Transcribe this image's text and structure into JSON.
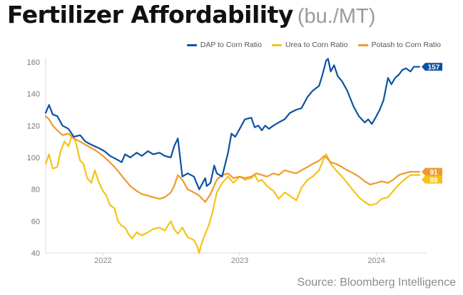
{
  "title": "Fertilizer Affordability",
  "title_unit": "(bu./MT)",
  "source": "Source: Bloomberg Intelligence",
  "chart_data": {
    "type": "line",
    "x_start": "2021-08-01",
    "x_end": "2024-04-25",
    "ylim": [
      40,
      160
    ],
    "yticks": [
      "40",
      "60",
      "80",
      "100",
      "120",
      "140",
      "160"
    ],
    "xticks": [
      {
        "date": "2022-01-01",
        "label": "2022"
      },
      {
        "date": "2023-01-01",
        "label": "2023"
      },
      {
        "date": "2024-01-01",
        "label": "2024"
      }
    ],
    "grid": false,
    "legend_position": "top-right",
    "series": [
      {
        "name": "DAP to Corn Ratio",
        "color": "#0d52a1",
        "end_label": "157",
        "points": [
          [
            "2021-08-01",
            128
          ],
          [
            "2021-08-10",
            133
          ],
          [
            "2021-08-20",
            127
          ],
          [
            "2021-09-01",
            126
          ],
          [
            "2021-09-15",
            120
          ],
          [
            "2021-10-01",
            118
          ],
          [
            "2021-10-15",
            113
          ],
          [
            "2021-11-01",
            114
          ],
          [
            "2021-11-15",
            110
          ],
          [
            "2021-12-01",
            108
          ],
          [
            "2021-12-20",
            106
          ],
          [
            "2022-01-05",
            104
          ],
          [
            "2022-01-20",
            101
          ],
          [
            "2022-02-05",
            99
          ],
          [
            "2022-02-20",
            97
          ],
          [
            "2022-03-01",
            102
          ],
          [
            "2022-03-15",
            100
          ],
          [
            "2022-04-01",
            103
          ],
          [
            "2022-04-15",
            101
          ],
          [
            "2022-05-01",
            104
          ],
          [
            "2022-05-15",
            102
          ],
          [
            "2022-06-01",
            103
          ],
          [
            "2022-06-15",
            101
          ],
          [
            "2022-07-01",
            100
          ],
          [
            "2022-07-10",
            107
          ],
          [
            "2022-07-20",
            112
          ],
          [
            "2022-08-01",
            88
          ],
          [
            "2022-08-15",
            90
          ],
          [
            "2022-09-01",
            88
          ],
          [
            "2022-09-15",
            80
          ],
          [
            "2022-10-01",
            87
          ],
          [
            "2022-10-05",
            82
          ],
          [
            "2022-10-15",
            84
          ],
          [
            "2022-10-25",
            95
          ],
          [
            "2022-11-01",
            90
          ],
          [
            "2022-11-15",
            88
          ],
          [
            "2022-12-01",
            103
          ],
          [
            "2022-12-10",
            115
          ],
          [
            "2022-12-20",
            113
          ],
          [
            "2023-01-01",
            118
          ],
          [
            "2023-01-15",
            124
          ],
          [
            "2023-02-01",
            125
          ],
          [
            "2023-02-10",
            119
          ],
          [
            "2023-02-20",
            120
          ],
          [
            "2023-03-01",
            117
          ],
          [
            "2023-03-10",
            120
          ],
          [
            "2023-03-20",
            118
          ],
          [
            "2023-04-01",
            120
          ],
          [
            "2023-04-15",
            122
          ],
          [
            "2023-05-01",
            124
          ],
          [
            "2023-05-15",
            128
          ],
          [
            "2023-06-01",
            130
          ],
          [
            "2023-06-15",
            131
          ],
          [
            "2023-07-01",
            138
          ],
          [
            "2023-07-15",
            142
          ],
          [
            "2023-08-01",
            145
          ],
          [
            "2023-08-10",
            152
          ],
          [
            "2023-08-20",
            161
          ],
          [
            "2023-08-25",
            162
          ],
          [
            "2023-09-01",
            154
          ],
          [
            "2023-09-10",
            158
          ],
          [
            "2023-09-20",
            151
          ],
          [
            "2023-10-01",
            148
          ],
          [
            "2023-10-15",
            142
          ],
          [
            "2023-11-01",
            132
          ],
          [
            "2023-11-15",
            126
          ],
          [
            "2023-12-01",
            122
          ],
          [
            "2023-12-10",
            124
          ],
          [
            "2023-12-20",
            121
          ],
          [
            "2024-01-01",
            126
          ],
          [
            "2024-01-10",
            130
          ],
          [
            "2024-01-20",
            136
          ],
          [
            "2024-02-01",
            150
          ],
          [
            "2024-02-10",
            146
          ],
          [
            "2024-02-20",
            150
          ],
          [
            "2024-03-01",
            152
          ],
          [
            "2024-03-10",
            155
          ],
          [
            "2024-03-20",
            156
          ],
          [
            "2024-04-01",
            154
          ],
          [
            "2024-04-10",
            157
          ],
          [
            "2024-04-25",
            157
          ]
        ]
      },
      {
        "name": "Urea to Corn Ratio",
        "color": "#f5c316",
        "end_label": "89",
        "points": [
          [
            "2021-08-01",
            96
          ],
          [
            "2021-08-10",
            102
          ],
          [
            "2021-08-20",
            93
          ],
          [
            "2021-09-01",
            94
          ],
          [
            "2021-09-10",
            104
          ],
          [
            "2021-09-20",
            110
          ],
          [
            "2021-10-01",
            107
          ],
          [
            "2021-10-10",
            114
          ],
          [
            "2021-10-20",
            110
          ],
          [
            "2021-11-01",
            98
          ],
          [
            "2021-11-10",
            96
          ],
          [
            "2021-11-20",
            87
          ],
          [
            "2021-12-01",
            84
          ],
          [
            "2021-12-10",
            92
          ],
          [
            "2021-12-20",
            85
          ],
          [
            "2022-01-01",
            79
          ],
          [
            "2022-01-10",
            76
          ],
          [
            "2022-01-20",
            70
          ],
          [
            "2022-02-01",
            68
          ],
          [
            "2022-02-10",
            60
          ],
          [
            "2022-02-20",
            57
          ],
          [
            "2022-03-01",
            56
          ],
          [
            "2022-03-10",
            52
          ],
          [
            "2022-03-20",
            49
          ],
          [
            "2022-04-01",
            53
          ],
          [
            "2022-04-15",
            51
          ],
          [
            "2022-05-01",
            53
          ],
          [
            "2022-05-15",
            55
          ],
          [
            "2022-06-01",
            56
          ],
          [
            "2022-06-15",
            54
          ],
          [
            "2022-07-01",
            60
          ],
          [
            "2022-07-10",
            55
          ],
          [
            "2022-07-20",
            52
          ],
          [
            "2022-08-01",
            56
          ],
          [
            "2022-08-15",
            50
          ],
          [
            "2022-09-01",
            48
          ],
          [
            "2022-09-10",
            44
          ],
          [
            "2022-09-15",
            40
          ],
          [
            "2022-09-20",
            45
          ],
          [
            "2022-10-01",
            52
          ],
          [
            "2022-10-10",
            57
          ],
          [
            "2022-10-20",
            65
          ],
          [
            "2022-11-01",
            78
          ],
          [
            "2022-11-15",
            84
          ],
          [
            "2022-12-01",
            88
          ],
          [
            "2022-12-15",
            84
          ],
          [
            "2023-01-01",
            88
          ],
          [
            "2023-01-15",
            86
          ],
          [
            "2023-02-01",
            87
          ],
          [
            "2023-02-10",
            89
          ],
          [
            "2023-02-20",
            85
          ],
          [
            "2023-03-01",
            86
          ],
          [
            "2023-03-15",
            82
          ],
          [
            "2023-04-01",
            79
          ],
          [
            "2023-04-15",
            74
          ],
          [
            "2023-05-01",
            78
          ],
          [
            "2023-05-15",
            76
          ],
          [
            "2023-06-01",
            73
          ],
          [
            "2023-06-15",
            81
          ],
          [
            "2023-07-01",
            86
          ],
          [
            "2023-07-15",
            88
          ],
          [
            "2023-08-01",
            92
          ],
          [
            "2023-08-15",
            100
          ],
          [
            "2023-08-20",
            102
          ],
          [
            "2023-09-01",
            96
          ],
          [
            "2023-09-15",
            92
          ],
          [
            "2023-10-01",
            88
          ],
          [
            "2023-10-15",
            84
          ],
          [
            "2023-11-01",
            79
          ],
          [
            "2023-11-15",
            75
          ],
          [
            "2023-12-01",
            72
          ],
          [
            "2023-12-15",
            70
          ],
          [
            "2024-01-01",
            71
          ],
          [
            "2024-01-15",
            74
          ],
          [
            "2024-02-01",
            75
          ],
          [
            "2024-02-15",
            79
          ],
          [
            "2024-03-01",
            83
          ],
          [
            "2024-03-15",
            86
          ],
          [
            "2024-04-01",
            89
          ],
          [
            "2024-04-25",
            89
          ]
        ]
      },
      {
        "name": "Potash to Corn Ratio",
        "color": "#ef9a2d",
        "end_label": "91",
        "points": [
          [
            "2021-08-01",
            126
          ],
          [
            "2021-08-10",
            124
          ],
          [
            "2021-08-20",
            120
          ],
          [
            "2021-09-01",
            117
          ],
          [
            "2021-09-15",
            114
          ],
          [
            "2021-10-01",
            115
          ],
          [
            "2021-10-15",
            112
          ],
          [
            "2021-11-01",
            110
          ],
          [
            "2021-11-15",
            108
          ],
          [
            "2021-12-01",
            106
          ],
          [
            "2021-12-15",
            104
          ],
          [
            "2022-01-01",
            101
          ],
          [
            "2022-01-15",
            98
          ],
          [
            "2022-02-01",
            94
          ],
          [
            "2022-02-15",
            90
          ],
          [
            "2022-03-01",
            86
          ],
          [
            "2022-03-15",
            82
          ],
          [
            "2022-04-01",
            79
          ],
          [
            "2022-04-15",
            77
          ],
          [
            "2022-05-01",
            76
          ],
          [
            "2022-05-15",
            75
          ],
          [
            "2022-06-01",
            74
          ],
          [
            "2022-06-15",
            75
          ],
          [
            "2022-07-01",
            78
          ],
          [
            "2022-07-10",
            82
          ],
          [
            "2022-07-20",
            89
          ],
          [
            "2022-08-01",
            86
          ],
          [
            "2022-08-15",
            80
          ],
          [
            "2022-09-01",
            78
          ],
          [
            "2022-09-15",
            76
          ],
          [
            "2022-10-01",
            72
          ],
          [
            "2022-10-15",
            77
          ],
          [
            "2022-11-01",
            86
          ],
          [
            "2022-11-15",
            89
          ],
          [
            "2022-12-01",
            90
          ],
          [
            "2022-12-15",
            87
          ],
          [
            "2023-01-01",
            88
          ],
          [
            "2023-01-15",
            87
          ],
          [
            "2023-02-01",
            88
          ],
          [
            "2023-02-15",
            90
          ],
          [
            "2023-03-01",
            89
          ],
          [
            "2023-03-15",
            88
          ],
          [
            "2023-04-01",
            90
          ],
          [
            "2023-04-15",
            89
          ],
          [
            "2023-05-01",
            92
          ],
          [
            "2023-05-15",
            91
          ],
          [
            "2023-06-01",
            90
          ],
          [
            "2023-06-15",
            92
          ],
          [
            "2023-07-01",
            94
          ],
          [
            "2023-07-15",
            96
          ],
          [
            "2023-08-01",
            98
          ],
          [
            "2023-08-15",
            101
          ],
          [
            "2023-08-20",
            100
          ],
          [
            "2023-09-01",
            97
          ],
          [
            "2023-09-15",
            96
          ],
          [
            "2023-10-01",
            94
          ],
          [
            "2023-10-15",
            92
          ],
          [
            "2023-11-01",
            90
          ],
          [
            "2023-11-15",
            88
          ],
          [
            "2023-12-01",
            85
          ],
          [
            "2023-12-15",
            83
          ],
          [
            "2024-01-01",
            84
          ],
          [
            "2024-01-15",
            85
          ],
          [
            "2024-02-01",
            84
          ],
          [
            "2024-02-15",
            86
          ],
          [
            "2024-03-01",
            89
          ],
          [
            "2024-03-15",
            90
          ],
          [
            "2024-04-01",
            91
          ],
          [
            "2024-04-25",
            91
          ]
        ]
      }
    ]
  }
}
